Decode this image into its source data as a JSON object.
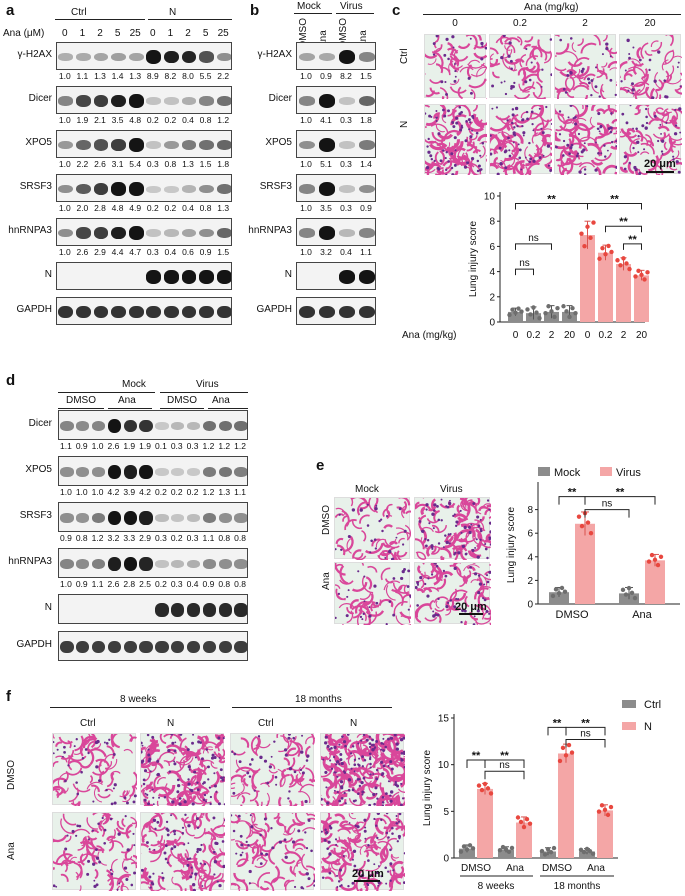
{
  "panel_a": {
    "label": "a",
    "ana_axis": "Ana (μM)",
    "groups": [
      "Ctrl",
      "N"
    ],
    "doses": [
      "0",
      "1",
      "2",
      "5",
      "25",
      "0",
      "1",
      "2",
      "5",
      "25"
    ],
    "rows": [
      {
        "name": "γ-H2AX",
        "quant": [
          "1.0",
          "1.1",
          "1.3",
          "1.4",
          "1.3",
          "8.9",
          "8.2",
          "8.0",
          "5.5",
          "2.2"
        ],
        "levels": [
          0.25,
          0.27,
          0.3,
          0.32,
          0.3,
          1,
          0.95,
          0.92,
          0.7,
          0.4
        ]
      },
      {
        "name": "Dicer",
        "quant": [
          "1.0",
          "1.9",
          "2.1",
          "3.5",
          "4.8",
          "0.2",
          "0.2",
          "0.4",
          "0.8",
          "1.2"
        ],
        "levels": [
          0.45,
          0.75,
          0.8,
          0.95,
          1,
          0.15,
          0.15,
          0.25,
          0.45,
          0.55
        ]
      },
      {
        "name": "XPO5",
        "quant": [
          "1.0",
          "2.2",
          "2.6",
          "3.1",
          "5.4",
          "0.3",
          "0.8",
          "1.3",
          "1.5",
          "1.8"
        ],
        "levels": [
          0.35,
          0.6,
          0.7,
          0.8,
          1,
          0.15,
          0.35,
          0.5,
          0.55,
          0.6
        ]
      },
      {
        "name": "SRSF3",
        "quant": [
          "1.0",
          "2.0",
          "2.8",
          "4.8",
          "4.9",
          "0.2",
          "0.2",
          "0.4",
          "0.8",
          "1.3"
        ],
        "levels": [
          0.4,
          0.65,
          0.8,
          1,
          1,
          0.12,
          0.12,
          0.22,
          0.4,
          0.55
        ]
      },
      {
        "name": "hnRNPA3",
        "quant": [
          "1.0",
          "2.6",
          "2.9",
          "4.4",
          "4.7",
          "0.3",
          "0.4",
          "0.6",
          "0.9",
          "1.5"
        ],
        "levels": [
          0.4,
          0.75,
          0.8,
          0.95,
          1,
          0.15,
          0.2,
          0.3,
          0.4,
          0.6
        ]
      },
      {
        "name": "N",
        "quant": [],
        "levels": [
          0,
          0,
          0,
          0,
          0,
          1,
          1,
          1,
          1,
          1
        ]
      },
      {
        "name": "GAPDH",
        "quant": [],
        "levels": [
          0.85,
          0.85,
          0.85,
          0.85,
          0.85,
          0.85,
          0.85,
          0.85,
          0.85,
          0.85
        ]
      }
    ]
  },
  "panel_b": {
    "label": "b",
    "groups": [
      "Mock",
      "Virus"
    ],
    "lanes": [
      "DMSO",
      "Ana",
      "DMSO",
      "Ana"
    ],
    "rows": [
      {
        "name": "γ-H2AX",
        "quant": [
          "1.0",
          "0.9",
          "8.2",
          "1.5"
        ],
        "levels": [
          0.3,
          0.28,
          1,
          0.45
        ]
      },
      {
        "name": "Dicer",
        "quant": [
          "1.0",
          "4.1",
          "0.3",
          "1.8"
        ],
        "levels": [
          0.45,
          1,
          0.15,
          0.6
        ]
      },
      {
        "name": "XPO5",
        "quant": [
          "1.0",
          "5.1",
          "0.3",
          "1.4"
        ],
        "levels": [
          0.4,
          1,
          0.15,
          0.5
        ]
      },
      {
        "name": "SRSF3",
        "quant": [
          "1.0",
          "3.5",
          "0.3",
          "0.9"
        ],
        "levels": [
          0.45,
          1,
          0.15,
          0.4
        ]
      },
      {
        "name": "hnRNPA3",
        "quant": [
          "1.0",
          "3.2",
          "0.4",
          "1.1"
        ],
        "levels": [
          0.45,
          1,
          0.2,
          0.45
        ]
      },
      {
        "name": "N",
        "quant": [],
        "levels": [
          0,
          0,
          1,
          1
        ]
      },
      {
        "name": "GAPDH",
        "quant": [],
        "levels": [
          0.85,
          0.85,
          0.85,
          0.85
        ]
      }
    ]
  },
  "panel_c": {
    "label": "c",
    "ana_title": "Ana (mg/kg)",
    "doses": [
      "0",
      "0.2",
      "2",
      "20"
    ],
    "rows": [
      "Ctrl",
      "N"
    ],
    "scale_bar": "20 μm"
  },
  "panel_d": {
    "label": "d",
    "groups": [
      "Mock",
      "Virus"
    ],
    "subgroups": [
      "DMSO",
      "Ana",
      "DMSO",
      "Ana"
    ],
    "rows": [
      {
        "name": "Dicer",
        "quant": [
          "1.1",
          "0.9",
          "1.0",
          "2.6",
          "1.9",
          "1.9",
          "0.1",
          "0.3",
          "0.3",
          "1.2",
          "1.2",
          "1.2"
        ],
        "levels": [
          0.45,
          0.42,
          0.45,
          1,
          0.85,
          0.85,
          0.12,
          0.2,
          0.2,
          0.55,
          0.55,
          0.55
        ]
      },
      {
        "name": "XPO5",
        "quant": [
          "1.0",
          "1.0",
          "1.0",
          "4.2",
          "3.9",
          "4.2",
          "0.2",
          "0.2",
          "0.2",
          "1.2",
          "1.3",
          "1.1"
        ],
        "levels": [
          0.4,
          0.4,
          0.4,
          1,
          0.95,
          1,
          0.12,
          0.12,
          0.12,
          0.5,
          0.52,
          0.48
        ]
      },
      {
        "name": "SRSF3",
        "quant": [
          "0.9",
          "0.8",
          "1.2",
          "3.2",
          "3.3",
          "2.9",
          "0.3",
          "0.2",
          "0.3",
          "1.1",
          "0.8",
          "0.8"
        ],
        "levels": [
          0.4,
          0.38,
          0.5,
          1,
          1,
          0.95,
          0.18,
          0.14,
          0.18,
          0.5,
          0.4,
          0.4
        ]
      },
      {
        "name": "hnRNPA3",
        "quant": [
          "1.0",
          "0.9",
          "1.1",
          "2.6",
          "2.8",
          "2.5",
          "0.2",
          "0.3",
          "0.4",
          "0.9",
          "0.8",
          "0.8"
        ],
        "levels": [
          0.45,
          0.42,
          0.48,
          0.95,
          1,
          0.92,
          0.15,
          0.2,
          0.25,
          0.42,
          0.4,
          0.4
        ]
      },
      {
        "name": "N",
        "quant": [],
        "levels": [
          0,
          0,
          0,
          0,
          0,
          0,
          0.9,
          0.9,
          0.9,
          0.9,
          0.9,
          0.9
        ]
      },
      {
        "name": "GAPDH",
        "quant": [],
        "levels": [
          0.8,
          0.8,
          0.8,
          0.8,
          0.8,
          0.8,
          0.8,
          0.8,
          0.8,
          0.8,
          0.8,
          0.8
        ]
      }
    ]
  },
  "panel_e": {
    "label": "e",
    "cols": [
      "Mock",
      "Virus"
    ],
    "rows": [
      "DMSO",
      "Ana"
    ],
    "scale_bar": "20 μm"
  },
  "panel_f": {
    "label": "f",
    "ages": [
      "8 weeks",
      "18 months"
    ],
    "cols": [
      "Ctrl",
      "N",
      "Ctrl",
      "N"
    ],
    "rows": [
      "DMSO",
      "Ana"
    ],
    "scale_bar": "20 μm"
  },
  "colors": {
    "gray_bar": "#8c8c8c",
    "pink_bar": "#f4a6a6",
    "gray_dot": "#6e6e6e",
    "pink_dot": "#e8473f",
    "tissue": "#d9479a",
    "bg_tissue": "#e8f1ea"
  },
  "chart_data": [
    {
      "type": "bar",
      "panel": "c",
      "ylabel": "Lung injury score",
      "xlabel": "Ana (mg/kg)",
      "categories": [
        "0",
        "0.2",
        "2",
        "20",
        "0",
        "0.2",
        "2",
        "20"
      ],
      "values": [
        0.8,
        0.7,
        0.8,
        0.8,
        6.9,
        5.5,
        4.6,
        3.7
      ],
      "errors": [
        0.3,
        0.5,
        0.5,
        0.5,
        1.1,
        0.6,
        0.5,
        0.4
      ],
      "bar_colors": [
        "gray",
        "gray",
        "gray",
        "gray",
        "pink",
        "pink",
        "pink",
        "pink"
      ],
      "ylim": [
        0,
        10
      ],
      "yticks": [
        0,
        2,
        4,
        6,
        8,
        10
      ],
      "significance": [
        {
          "a": 0,
          "b": 1,
          "label": "ns",
          "level": 4.2
        },
        {
          "a": 0,
          "b": 2,
          "label": "ns",
          "level": 6.2
        },
        {
          "a": 0,
          "b": 4,
          "label": "**",
          "level": 9.4
        },
        {
          "a": 4,
          "b": 7,
          "label": "**",
          "level": 9.4
        },
        {
          "a": 5,
          "b": 7,
          "label": "**",
          "level": 7.6
        },
        {
          "a": 6,
          "b": 7,
          "label": "**",
          "level": 6.2
        }
      ]
    },
    {
      "type": "bar",
      "panel": "e",
      "ylabel": "Lung injury score",
      "legend": [
        "Mock",
        "Virus"
      ],
      "legend_position": "top",
      "groups": [
        "DMSO",
        "Ana"
      ],
      "series": [
        {
          "name": "Mock",
          "values": [
            1.0,
            0.9
          ],
          "errors": [
            0.4,
            0.5
          ]
        },
        {
          "name": "Virus",
          "values": [
            6.8,
            3.7
          ],
          "errors": [
            1.0,
            0.5
          ]
        }
      ],
      "ylim": [
        0,
        10
      ],
      "yticks": [
        0,
        2,
        4,
        6,
        8
      ],
      "significance": [
        {
          "a": 0,
          "b": 1,
          "label": "**",
          "level": 9.1
        },
        {
          "a": 1,
          "b": 2,
          "label": "ns",
          "level": 8.0
        },
        {
          "a": 1,
          "b": 3,
          "label": "**",
          "level": 9.1
        }
      ]
    },
    {
      "type": "bar",
      "panel": "f",
      "ylabel": "Lung injury score",
      "legend": [
        "Ctrl",
        "N"
      ],
      "legend_position": "top-right",
      "groups": [
        "DMSO",
        "Ana",
        "DMSO",
        "Ana"
      ],
      "group_sets": [
        "8 weeks",
        "18 months"
      ],
      "series": [
        {
          "name": "Ctrl",
          "values": [
            1.0,
            0.9,
            0.7,
            0.7
          ],
          "errors": [
            0.4,
            0.3,
            0.4,
            0.3
          ]
        },
        {
          "name": "N",
          "values": [
            7.4,
            3.8,
            11.2,
            5.1
          ],
          "errors": [
            0.6,
            0.6,
            1.0,
            0.6
          ]
        }
      ],
      "ylim": [
        0,
        15
      ],
      "yticks": [
        0,
        5,
        10,
        15
      ],
      "significance": [
        {
          "a": 0,
          "b": 1,
          "label": "**",
          "level": 10.5
        },
        {
          "a": 1,
          "b": 3,
          "label": "ns",
          "level": 9.3
        },
        {
          "a": 1,
          "b": 3,
          "label": "**",
          "level": 10.5
        },
        {
          "a": 4,
          "b": 5,
          "label": "**",
          "level": 14.0
        },
        {
          "a": 5,
          "b": 7,
          "label": "ns",
          "level": 12.7
        },
        {
          "a": 5,
          "b": 7,
          "label": "**",
          "level": 14.0
        }
      ]
    }
  ]
}
